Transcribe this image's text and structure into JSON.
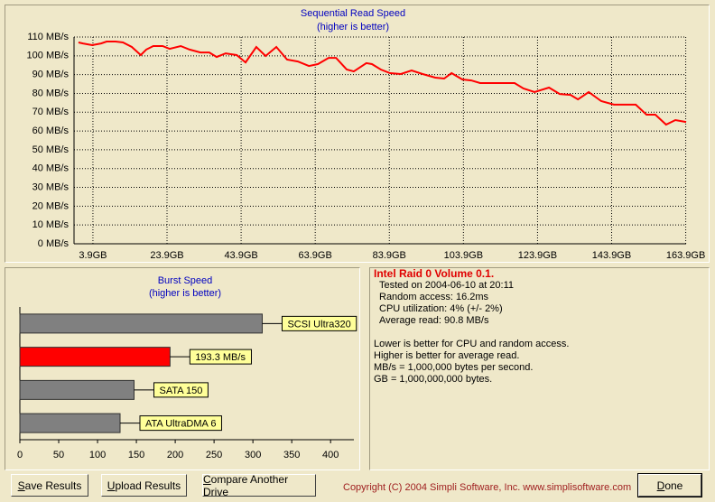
{
  "chart_data": [
    {
      "type": "line",
      "title": "Sequential Read Speed",
      "subtitle": "(higher is better)",
      "color": "#ff0000",
      "grid": true,
      "x": [
        0,
        1.2,
        3.7,
        6.1,
        7.6,
        10.0,
        12.0,
        14.4,
        16.8,
        18.3,
        20.2,
        22.7,
        24.6,
        27.6,
        30.0,
        32.9,
        35.3,
        37.3,
        39.7,
        42.7,
        45.1,
        48.0,
        50.5,
        53.4,
        56.3,
        59.2,
        62.2,
        64.6,
        67.5,
        69.5,
        72.4,
        74.3,
        77.7,
        79.2,
        81.6,
        84.1,
        87.0,
        89.9,
        92.9,
        96.3,
        98.7,
        100.7,
        103.6,
        106.0,
        108.4,
        117.7,
        120.1,
        123.1,
        127.0,
        129.9,
        132.8,
        134.8,
        137.7,
        141.1,
        144.5,
        150.4,
        153.3,
        155.7,
        158.6,
        161.1,
        164.0
      ],
      "values": [
        107.1,
        106.6,
        105.7,
        106.6,
        107.6,
        107.6,
        107.1,
        104.7,
        100.4,
        103.3,
        105.2,
        105.2,
        103.7,
        105.2,
        103.3,
        101.8,
        101.8,
        99.4,
        101.3,
        100.4,
        96.5,
        104.7,
        99.9,
        104.7,
        98.0,
        97.0,
        94.6,
        95.6,
        98.9,
        98.9,
        92.7,
        91.7,
        96.1,
        95.6,
        92.7,
        90.8,
        90.3,
        92.2,
        90.3,
        88.4,
        87.9,
        90.8,
        87.4,
        86.9,
        85.5,
        85.5,
        82.6,
        80.7,
        83.1,
        79.7,
        79.2,
        76.8,
        80.7,
        75.9,
        74.0,
        74.0,
        68.7,
        68.7,
        63.4,
        65.8,
        64.8
      ],
      "xlim": [
        -1.2,
        164
      ],
      "xticks": [
        {
          "value": 3.9,
          "label": "3.9GB"
        },
        {
          "value": 23.9,
          "label": "23.9GB"
        },
        {
          "value": 43.9,
          "label": "43.9GB"
        },
        {
          "value": 63.9,
          "label": "63.9GB"
        },
        {
          "value": 83.9,
          "label": "83.9GB"
        },
        {
          "value": 103.9,
          "label": "103.9GB"
        },
        {
          "value": 123.9,
          "label": "123.9GB"
        },
        {
          "value": 143.9,
          "label": "143.9GB"
        },
        {
          "value": 163.9,
          "label": "163.9GB"
        }
      ],
      "ylim": [
        0,
        110
      ],
      "yticks": [
        {
          "value": 0,
          "label": "0 MB/s"
        },
        {
          "value": 10,
          "label": "10 MB/s"
        },
        {
          "value": 20,
          "label": "20 MB/s"
        },
        {
          "value": 30,
          "label": "30 MB/s"
        },
        {
          "value": 40,
          "label": "40 MB/s"
        },
        {
          "value": 50,
          "label": "50 MB/s"
        },
        {
          "value": 60,
          "label": "60 MB/s"
        },
        {
          "value": 70,
          "label": "70 MB/s"
        },
        {
          "value": 80,
          "label": "80 MB/s"
        },
        {
          "value": 90,
          "label": "90 MB/s"
        },
        {
          "value": 100,
          "label": "100 MB/s"
        },
        {
          "value": 110,
          "label": "110 MB/s"
        }
      ]
    },
    {
      "type": "hbar",
      "title": "Burst Speed",
      "subtitle": "(higher is better)",
      "categories": [
        "SCSI Ultra320",
        null,
        "SATA 150",
        "ATA UltraDMA 6"
      ],
      "values": [
        312,
        193.3,
        147,
        129
      ],
      "value_labels": [
        null,
        "193.3 MB/s",
        null,
        null
      ],
      "colors": [
        "#808080",
        "#ff0000",
        "#808080",
        "#808080"
      ],
      "xlim": [
        0,
        430
      ],
      "xticks": [
        0,
        50,
        100,
        150,
        200,
        250,
        300,
        350,
        400
      ]
    }
  ],
  "info": {
    "title": "Intel Raid 0 Volume 0.1.",
    "details": [
      "Tested on 2004-06-10 at 20:11",
      "Random access: 16.2ms",
      "CPU utilization: 4% (+/- 2%)",
      "Average read: 90.8 MB/s"
    ],
    "notes": [
      "Lower is better for CPU and random access.",
      "Higher is better for average read.",
      "MB/s = 1,000,000 bytes per second.",
      "GB = 1,000,000,000 bytes."
    ]
  },
  "buttons": [
    "Save Results",
    "Upload Results",
    "Compare Another Drive",
    "Done"
  ],
  "copyright": "Copyright (C) 2004 Simpli Software, Inc. www.simplisoftware.com"
}
